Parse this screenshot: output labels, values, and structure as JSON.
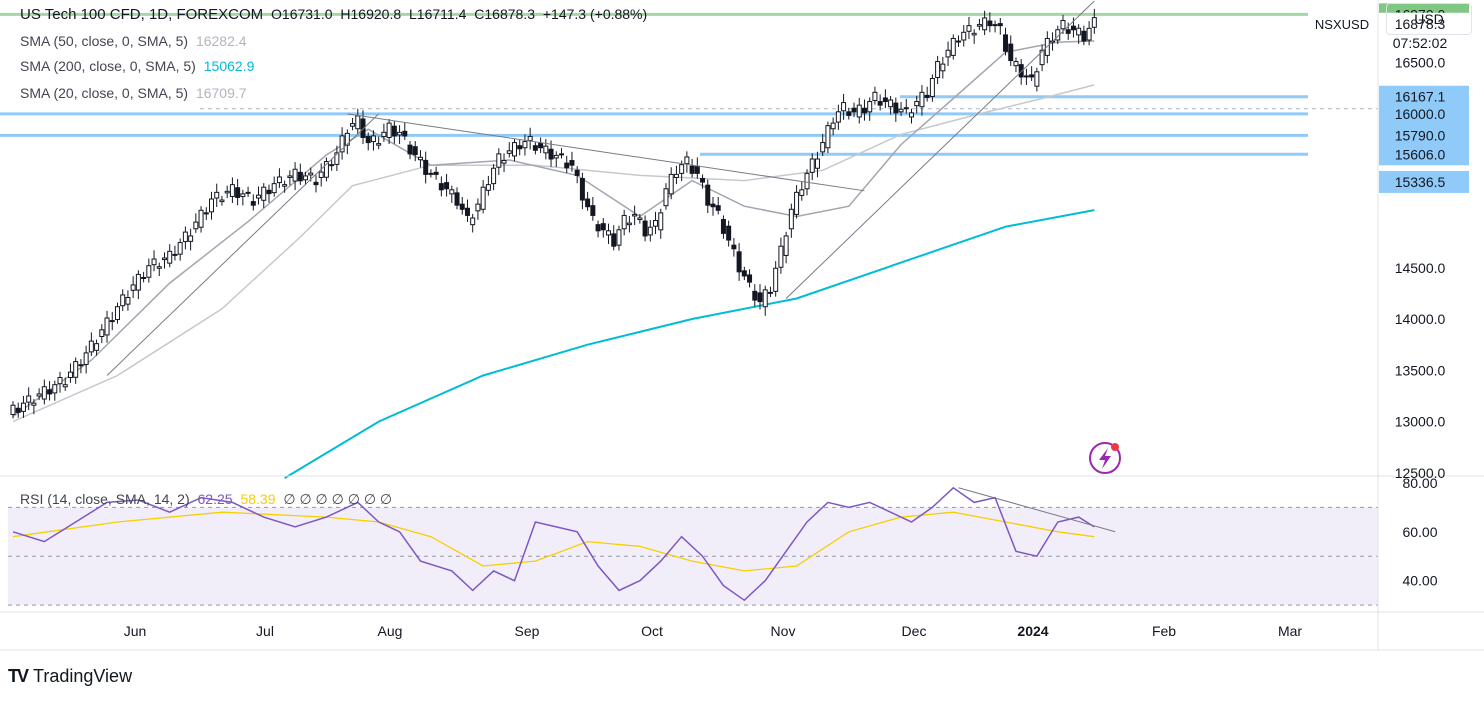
{
  "header": {
    "title": "US Tech 100 CFD, 1D, FOREXCOM",
    "open": "O16731.0",
    "high": "H16920.8",
    "low": "L16711.4",
    "close": "C16878.3",
    "change": "+147.3 (+0.88%)"
  },
  "indicators": [
    {
      "label": "SMA (50, close, 0, SMA, 5)",
      "value": "16282.4",
      "color": "#b2b5be"
    },
    {
      "label": "SMA (200, close, 0, SMA, 5)",
      "value": "15062.9",
      "color": "#00bcd4"
    },
    {
      "label": "SMA (20, close, 0, SMA, 5)",
      "value": "16709.7",
      "color": "#b2b5be"
    }
  ],
  "rsi_legend": {
    "label": "RSI (14, close, SMA, 14, 2)",
    "value": "62.25",
    "sma_value": "58.39",
    "extras": "∅ ∅ ∅ ∅ ∅ ∅ ∅"
  },
  "currency": "USD",
  "symbol_tag": "NSXUSD",
  "countdown": "07:52:02",
  "brand": "TradingView",
  "chart_data": {
    "type": "candlestick",
    "price_axis": {
      "ticks": [
        "12500.0",
        "13000.0",
        "13500.0",
        "14000.0",
        "14500.0",
        "16500.0"
      ],
      "range": [
        12470,
        17110
      ]
    },
    "level_labels": [
      {
        "value": 16970.0,
        "label": "16970.0",
        "color": "#81c784"
      },
      {
        "value": 16878.3,
        "label": "16878.3",
        "color": "#ffffff"
      },
      {
        "value": 16167.1,
        "label": "16167.1",
        "color": "#90caf9"
      },
      {
        "value": 16000.0,
        "label": "16000.0",
        "color": "#90caf9"
      },
      {
        "value": 15790.0,
        "label": "15790.0",
        "color": "#90caf9"
      },
      {
        "value": 15606.0,
        "label": "15606.0",
        "color": "#90caf9"
      },
      {
        "value": 15336.5,
        "label": "15336.5",
        "color": "#90caf9"
      }
    ],
    "horizontal_lines": [
      {
        "value": 16970.0,
        "color": "#a5d6a7"
      },
      {
        "value": 16167.1,
        "color": "#90caf9"
      },
      {
        "value": 16000.0,
        "color": "#90caf9"
      },
      {
        "value": 15790.0,
        "color": "#90caf9"
      },
      {
        "value": 15606.0,
        "color": "#90caf9"
      }
    ],
    "time_axis": [
      "Jun",
      "Jul",
      "Aug",
      "Sep",
      "Oct",
      "Nov",
      "Dec",
      "2024",
      "Feb",
      "Mar"
    ],
    "close_path": [
      [
        0,
        13100
      ],
      [
        5,
        13250
      ],
      [
        10,
        13400
      ],
      [
        14,
        13650
      ],
      [
        18,
        13950
      ],
      [
        22,
        14250
      ],
      [
        26,
        14500
      ],
      [
        30,
        14600
      ],
      [
        34,
        14850
      ],
      [
        38,
        15150
      ],
      [
        42,
        15250
      ],
      [
        46,
        15150
      ],
      [
        50,
        15300
      ],
      [
        54,
        15400
      ],
      [
        58,
        15350
      ],
      [
        62,
        15600
      ],
      [
        64,
        15850
      ],
      [
        66,
        15920
      ],
      [
        68,
        15700
      ],
      [
        70,
        15750
      ],
      [
        72,
        15850
      ],
      [
        74,
        15800
      ],
      [
        76,
        15650
      ],
      [
        79,
        15450
      ],
      [
        82,
        15300
      ],
      [
        85,
        15150
      ],
      [
        87,
        14950
      ],
      [
        89,
        15100
      ],
      [
        91,
        15350
      ],
      [
        93,
        15550
      ],
      [
        95,
        15620
      ],
      [
        97,
        15700
      ],
      [
        99,
        15720
      ],
      [
        101,
        15650
      ],
      [
        103,
        15600
      ],
      [
        105,
        15550
      ],
      [
        107,
        15480
      ],
      [
        109,
        15200
      ],
      [
        111,
        14950
      ],
      [
        113,
        14850
      ],
      [
        115,
        14750
      ],
      [
        117,
        14950
      ],
      [
        119,
        15000
      ],
      [
        121,
        14850
      ],
      [
        123,
        14900
      ],
      [
        125,
        15250
      ],
      [
        127,
        15450
      ],
      [
        129,
        15520
      ],
      [
        131,
        15400
      ],
      [
        133,
        15150
      ],
      [
        135,
        15000
      ],
      [
        137,
        14750
      ],
      [
        139,
        14500
      ],
      [
        141,
        14300
      ],
      [
        143,
        14150
      ],
      [
        145,
        14300
      ],
      [
        147,
        14650
      ],
      [
        149,
        15050
      ],
      [
        151,
        15300
      ],
      [
        153,
        15500
      ],
      [
        155,
        15700
      ],
      [
        157,
        15950
      ],
      [
        159,
        16050
      ],
      [
        161,
        16000
      ],
      [
        163,
        16050
      ],
      [
        165,
        16150
      ],
      [
        167,
        16100
      ],
      [
        169,
        16050
      ],
      [
        171,
        16000
      ],
      [
        173,
        16100
      ],
      [
        175,
        16200
      ],
      [
        177,
        16450
      ],
      [
        179,
        16600
      ],
      [
        181,
        16750
      ],
      [
        183,
        16800
      ],
      [
        185,
        16850
      ],
      [
        187,
        16900
      ],
      [
        189,
        16800
      ],
      [
        191,
        16500
      ],
      [
        193,
        16400
      ],
      [
        195,
        16300
      ],
      [
        197,
        16600
      ],
      [
        199,
        16750
      ],
      [
        201,
        16850
      ],
      [
        203,
        16800
      ],
      [
        205,
        16750
      ],
      [
        207,
        16878
      ]
    ],
    "sma200": [
      [
        52,
        12450
      ],
      [
        70,
        13000
      ],
      [
        90,
        13450
      ],
      [
        110,
        13750
      ],
      [
        130,
        14000
      ],
      [
        150,
        14200
      ],
      [
        170,
        14550
      ],
      [
        190,
        14900
      ],
      [
        207,
        15062
      ]
    ],
    "sma50": [
      [
        0,
        13000
      ],
      [
        20,
        13450
      ],
      [
        40,
        14100
      ],
      [
        55,
        14800
      ],
      [
        65,
        15300
      ],
      [
        80,
        15500
      ],
      [
        100,
        15500
      ],
      [
        120,
        15400
      ],
      [
        140,
        15350
      ],
      [
        155,
        15450
      ],
      [
        170,
        15800
      ],
      [
        185,
        16000
      ],
      [
        197,
        16150
      ],
      [
        207,
        16282
      ]
    ],
    "sma20": [
      [
        0,
        13050
      ],
      [
        15,
        13600
      ],
      [
        30,
        14350
      ],
      [
        45,
        14950
      ],
      [
        60,
        15600
      ],
      [
        68,
        15850
      ],
      [
        80,
        15500
      ],
      [
        95,
        15550
      ],
      [
        108,
        15400
      ],
      [
        120,
        15000
      ],
      [
        130,
        15350
      ],
      [
        140,
        15100
      ],
      [
        150,
        15000
      ],
      [
        160,
        15100
      ],
      [
        170,
        15700
      ],
      [
        180,
        16150
      ],
      [
        190,
        16600
      ],
      [
        200,
        16700
      ],
      [
        207,
        16710
      ]
    ],
    "trendlines": [
      {
        "points": [
          [
            18,
            13450
          ],
          [
            70,
            16000
          ]
        ],
        "color": "#787b86"
      },
      {
        "points": [
          [
            64,
            16000
          ],
          [
            163,
            15250
          ]
        ],
        "color": "#787b86"
      },
      {
        "points": [
          [
            148,
            14200
          ],
          [
            207,
            17100
          ]
        ],
        "color": "#787b86"
      }
    ],
    "rsi": {
      "ticks": [
        "40.00",
        "60.00",
        "80.00"
      ],
      "range": [
        28,
        82
      ],
      "bands": [
        30,
        50,
        70
      ],
      "rsi_path": [
        [
          0,
          60
        ],
        [
          6,
          56
        ],
        [
          12,
          64
        ],
        [
          18,
          72
        ],
        [
          24,
          73
        ],
        [
          30,
          68
        ],
        [
          36,
          74
        ],
        [
          42,
          72
        ],
        [
          48,
          66
        ],
        [
          54,
          62
        ],
        [
          60,
          66
        ],
        [
          66,
          72
        ],
        [
          70,
          64
        ],
        [
          74,
          60
        ],
        [
          78,
          48
        ],
        [
          84,
          44
        ],
        [
          88,
          36
        ],
        [
          92,
          44
        ],
        [
          96,
          40
        ],
        [
          100,
          64
        ],
        [
          104,
          62
        ],
        [
          108,
          60
        ],
        [
          112,
          46
        ],
        [
          116,
          36
        ],
        [
          120,
          40
        ],
        [
          124,
          48
        ],
        [
          128,
          58
        ],
        [
          132,
          50
        ],
        [
          136,
          38
        ],
        [
          140,
          32
        ],
        [
          144,
          40
        ],
        [
          148,
          52
        ],
        [
          152,
          64
        ],
        [
          156,
          72
        ],
        [
          160,
          70
        ],
        [
          164,
          72
        ],
        [
          168,
          68
        ],
        [
          172,
          64
        ],
        [
          176,
          70
        ],
        [
          180,
          78
        ],
        [
          184,
          72
        ],
        [
          188,
          74
        ],
        [
          192,
          52
        ],
        [
          196,
          50
        ],
        [
          200,
          64
        ],
        [
          204,
          66
        ],
        [
          207,
          62
        ]
      ],
      "sma_path": [
        [
          0,
          58
        ],
        [
          20,
          64
        ],
        [
          40,
          68
        ],
        [
          60,
          66
        ],
        [
          70,
          64
        ],
        [
          80,
          58
        ],
        [
          90,
          46
        ],
        [
          100,
          48
        ],
        [
          110,
          56
        ],
        [
          120,
          54
        ],
        [
          130,
          48
        ],
        [
          140,
          44
        ],
        [
          150,
          46
        ],
        [
          160,
          60
        ],
        [
          170,
          66
        ],
        [
          180,
          68
        ],
        [
          190,
          64
        ],
        [
          200,
          60
        ],
        [
          207,
          58
        ]
      ],
      "trendline": [
        [
          181,
          78
        ],
        [
          211,
          60
        ]
      ]
    }
  }
}
